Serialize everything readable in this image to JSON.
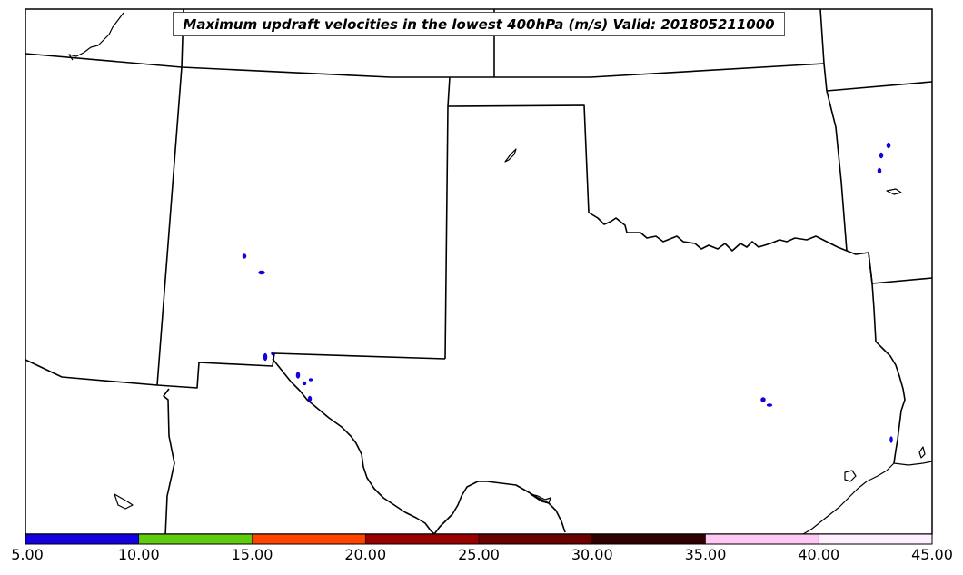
{
  "title": "Maximum updraft velocities in the lowest 400hPa (m/s) Valid: 201805211000",
  "colorbar": {
    "ticks": [
      "5.00",
      "10.00",
      "15.00",
      "20.00",
      "25.00",
      "30.00",
      "35.00",
      "40.00",
      "45.00"
    ],
    "segments": [
      {
        "from": 5,
        "to": 10,
        "color": "#1400e0"
      },
      {
        "from": 10,
        "to": 15,
        "color": "#5fcc10"
      },
      {
        "from": 15,
        "to": 20,
        "color": "#ff4400"
      },
      {
        "from": 20,
        "to": 25,
        "color": "#990000"
      },
      {
        "from": 25,
        "to": 30,
        "color": "#6a0000"
      },
      {
        "from": 30,
        "to": 35,
        "color": "#300000"
      },
      {
        "from": 35,
        "to": 40,
        "color": "#ffc8f5"
      },
      {
        "from": 40,
        "to": 45,
        "color": "#fff0ff"
      }
    ]
  },
  "colors": {
    "updraft_cells": "#1400e0",
    "borders": "#000000",
    "background": "#ffffff"
  }
}
